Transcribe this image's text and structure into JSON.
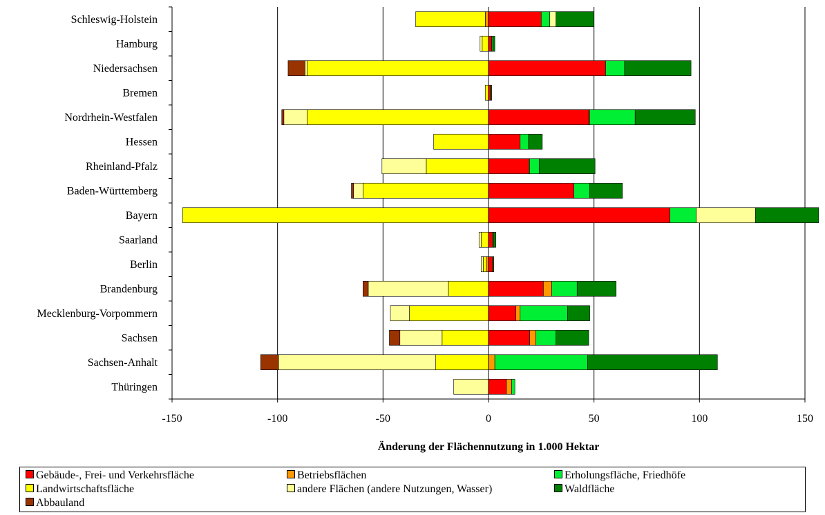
{
  "chart_data": {
    "type": "bar",
    "orientation": "horizontal",
    "stacked": "diverging",
    "xlabel": "Änderung der Flächennutzung in 1.000 Hektar",
    "xlim": [
      -150,
      150
    ],
    "xticks": [
      -150,
      -100,
      -50,
      0,
      50,
      100,
      150
    ],
    "grid": "vertical",
    "legend": "bottom",
    "categories": [
      "Schleswig-Holstein",
      "Hamburg",
      "Niedersachsen",
      "Bremen",
      "Nordrhein-Westfalen",
      "Hessen",
      "Rheinland-Pfalz",
      "Baden-Württemberg",
      "Bayern",
      "Saarland",
      "Berlin",
      "Brandenburg",
      "Mecklenburg-Vorpommern",
      "Sachsen",
      "Sachsen-Anhalt",
      "Thüringen"
    ],
    "series": [
      {
        "name": "Gebäude-, Frei- und Verkehrsfläche",
        "color": "#FF0000",
        "values": [
          25,
          1.5,
          55.5,
          1,
          47.5,
          15,
          19,
          40.5,
          86,
          2,
          2,
          26,
          13,
          19.5,
          0,
          8.5
        ]
      },
      {
        "name": "Betriebsflächen",
        "color": "#FF9900",
        "values": [
          -1.5,
          0,
          0,
          0,
          0.5,
          0,
          0.5,
          0,
          0,
          0,
          -1,
          4,
          2,
          3,
          3,
          2.5
        ]
      },
      {
        "name": "Erholungsfläche, Friedhöfe",
        "color": "#00EE33",
        "values": [
          4,
          0.5,
          9,
          0,
          21.5,
          4,
          4.5,
          7.5,
          12.5,
          0.5,
          0,
          12,
          22.5,
          9.5,
          44,
          1.5
        ]
      },
      {
        "name": "Landwirtschaftsfläche",
        "color": "#FFFF00",
        "values": [
          -33,
          -3,
          -86,
          -1.5,
          -86,
          -26,
          -29.5,
          -59.5,
          -145,
          -3.5,
          -1.5,
          -19,
          -37.5,
          -22,
          -25,
          0
        ]
      },
      {
        "name": "andere Flächen (andere Nutzungen, Wasser)",
        "color": "#FFFF99",
        "values": [
          3,
          -1,
          -1,
          0,
          -11,
          0,
          -21,
          -4.5,
          28,
          -1,
          -1,
          -38,
          -9,
          -20,
          -74.5,
          -16.5
        ]
      },
      {
        "name": "Waldfläche",
        "color": "#008000",
        "values": [
          18,
          1,
          31.5,
          0.5,
          28.5,
          6.5,
          26.5,
          15.5,
          30,
          1,
          0.5,
          18.5,
          10.5,
          15.5,
          61.5,
          0
        ]
      },
      {
        "name": "Abbauland",
        "color": "#993300",
        "values": [
          0,
          0,
          -8,
          0,
          -1,
          0,
          0,
          -1,
          0,
          0,
          0,
          -2.5,
          0,
          -5,
          -8.5,
          0
        ]
      }
    ]
  }
}
